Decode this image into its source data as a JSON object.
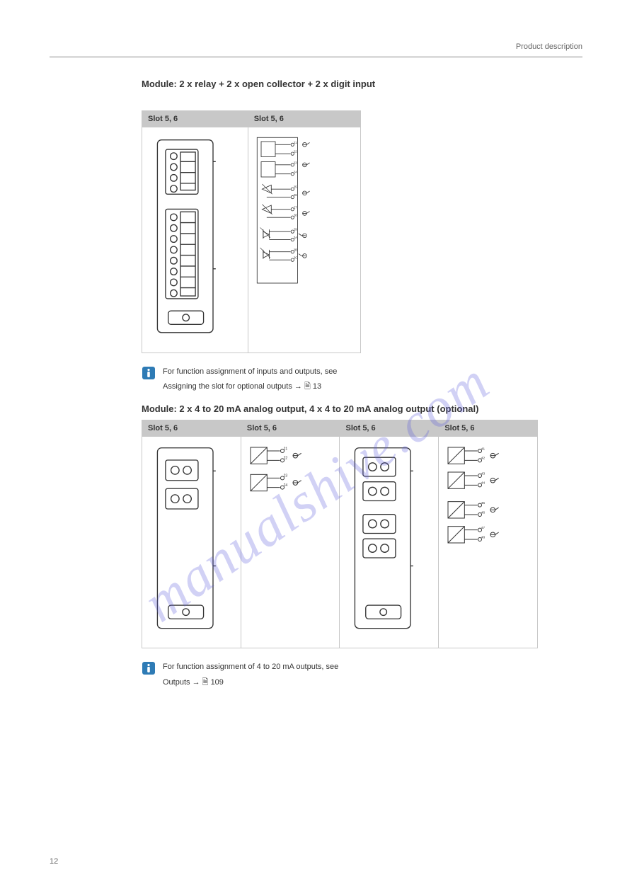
{
  "header": {
    "title": "Product description"
  },
  "module1": {
    "heading": "Module: 2 x relay + 2 x open collector + 2 x digit input",
    "col1": "Slot 5, 6",
    "col2": "Slot 5, 6",
    "schematic": {
      "pins_left": [
        "21",
        "22",
        "23",
        "24",
        "25",
        "26",
        "27",
        "28",
        "29",
        "2A",
        "2B",
        "2C"
      ],
      "pins_right": [
        "41",
        "42",
        "43",
        "44",
        "45",
        "46",
        "47",
        "48",
        "49",
        "4A",
        "4B",
        "4C"
      ]
    },
    "note": "For function assignment of inputs and outputs, see",
    "xref_text": "Assigning the slot for optional outputs →",
    "xref_sym": "🗎",
    "xref_page": "13"
  },
  "module2": {
    "heading": "Module: 2 x 4 to 20 mA analog output, 4 x 4 to 20 mA analog output (optional)",
    "col1": "Slot 5, 6",
    "col2": "Slot 5, 6",
    "col3": "Slot 5, 6",
    "col4": "Slot 5, 6",
    "left_pins": [
      "21",
      "22",
      "23",
      "24"
    ],
    "right_pins": [
      "41",
      "42",
      "43",
      "44",
      "45",
      "46",
      "47",
      "48"
    ],
    "note": "For function assignment of 4 to 20 mA outputs, see",
    "xref_text": "Outputs →",
    "xref_sym": "🗎",
    "xref_page": "109"
  },
  "page_number": "12",
  "watermark": "manualshive.com",
  "colors": {
    "th_bg": "#c8c8c8",
    "line": "#333333"
  }
}
